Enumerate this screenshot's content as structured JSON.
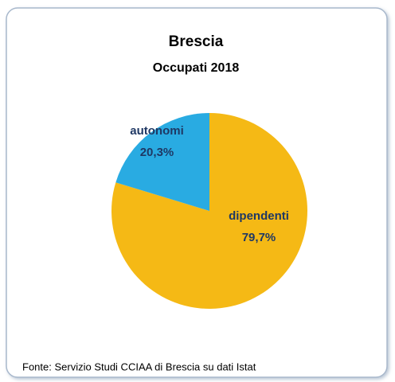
{
  "chart_data": {
    "type": "pie",
    "title": "Brescia",
    "subtitle": "Occupati 2018",
    "categories": [
      "dipendenti",
      "autonomi"
    ],
    "values": [
      79.7,
      20.3
    ],
    "value_labels": [
      "79,7%",
      "20,3%"
    ],
    "colors": [
      "#f5b915",
      "#29abe2"
    ],
    "source": "Fonte: Servizio Studi CCIAA di Brescia su dati Istat"
  }
}
